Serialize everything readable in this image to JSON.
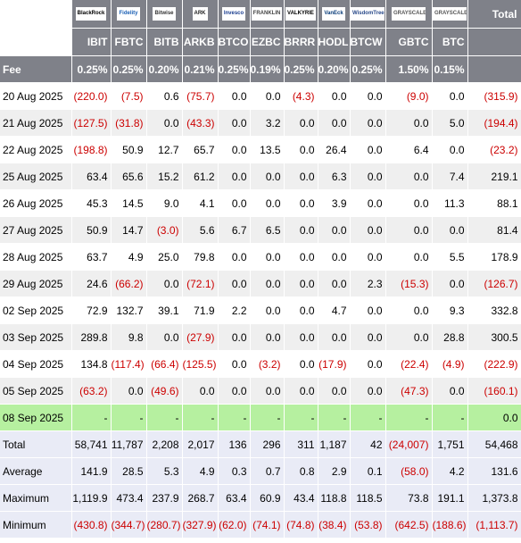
{
  "header": {
    "logos": [
      {
        "text": "BlackRock",
        "color": "#000000"
      },
      {
        "text": "Fidelity",
        "color": "#1a5fb4"
      },
      {
        "text": "Bitwise",
        "color": "#333333"
      },
      {
        "text": "ARK",
        "color": "#222222"
      },
      {
        "text": "Invesco",
        "color": "#1a3d8f"
      },
      {
        "text": "FRANKLIN",
        "color": "#444444"
      },
      {
        "text": "VALKYRIE",
        "color": "#000000"
      },
      {
        "text": "VanEck",
        "color": "#0a3d7a"
      },
      {
        "text": "WisdomTree",
        "color": "#2a4a8a"
      },
      {
        "text": "GRAYSCALE",
        "color": "#555555"
      },
      {
        "text": "GRAYSCALE",
        "color": "#555555"
      }
    ],
    "total_label": "Total",
    "tickers": [
      "IBIT",
      "FBTC",
      "BITB",
      "ARKB",
      "BTCO",
      "EZBC",
      "BRRR",
      "HODL",
      "BTCW",
      "GBTC",
      "BTC"
    ],
    "fee_label": "Fee",
    "fees": [
      "0.25%",
      "0.25%",
      "0.20%",
      "0.21%",
      "0.25%",
      "0.19%",
      "0.25%",
      "0.20%",
      "0.25%",
      "1.50%",
      "0.15%"
    ]
  },
  "rows": [
    {
      "date": "20 Aug 2025",
      "values": [
        "(220.0)",
        "(7.5)",
        "0.6",
        "(75.7)",
        "0.0",
        "0.0",
        "(4.3)",
        "0.0",
        "0.0",
        "(9.0)",
        "0.0"
      ],
      "total": "(315.9)"
    },
    {
      "date": "21 Aug 2025",
      "values": [
        "(127.5)",
        "(31.8)",
        "0.0",
        "(43.3)",
        "0.0",
        "3.2",
        "0.0",
        "0.0",
        "0.0",
        "0.0",
        "5.0"
      ],
      "total": "(194.4)"
    },
    {
      "date": "22 Aug 2025",
      "values": [
        "(198.8)",
        "50.9",
        "12.7",
        "65.7",
        "0.0",
        "13.5",
        "0.0",
        "26.4",
        "0.0",
        "6.4",
        "0.0"
      ],
      "total": "(23.2)"
    },
    {
      "date": "25 Aug 2025",
      "values": [
        "63.4",
        "65.6",
        "15.2",
        "61.2",
        "0.0",
        "0.0",
        "0.0",
        "6.3",
        "0.0",
        "0.0",
        "7.4"
      ],
      "total": "219.1"
    },
    {
      "date": "26 Aug 2025",
      "values": [
        "45.3",
        "14.5",
        "9.0",
        "4.1",
        "0.0",
        "0.0",
        "0.0",
        "3.9",
        "0.0",
        "0.0",
        "11.3"
      ],
      "total": "88.1"
    },
    {
      "date": "27 Aug 2025",
      "values": [
        "50.9",
        "14.7",
        "(3.0)",
        "5.6",
        "6.7",
        "6.5",
        "0.0",
        "0.0",
        "0.0",
        "0.0",
        "0.0"
      ],
      "total": "81.4"
    },
    {
      "date": "28 Aug 2025",
      "values": [
        "63.7",
        "4.9",
        "25.0",
        "79.8",
        "0.0",
        "0.0",
        "0.0",
        "0.0",
        "0.0",
        "0.0",
        "5.5"
      ],
      "total": "178.9"
    },
    {
      "date": "29 Aug 2025",
      "values": [
        "24.6",
        "(66.2)",
        "0.0",
        "(72.1)",
        "0.0",
        "0.0",
        "0.0",
        "0.0",
        "2.3",
        "(15.3)",
        "0.0"
      ],
      "total": "(126.7)"
    },
    {
      "date": "02 Sep 2025",
      "values": [
        "72.9",
        "132.7",
        "39.1",
        "71.9",
        "2.2",
        "0.0",
        "0.0",
        "4.7",
        "0.0",
        "0.0",
        "9.3"
      ],
      "total": "332.8"
    },
    {
      "date": "03 Sep 2025",
      "values": [
        "289.8",
        "9.8",
        "0.0",
        "(27.9)",
        "0.0",
        "0.0",
        "0.0",
        "0.0",
        "0.0",
        "0.0",
        "28.8"
      ],
      "total": "300.5"
    },
    {
      "date": "04 Sep 2025",
      "values": [
        "134.8",
        "(117.4)",
        "(66.4)",
        "(125.5)",
        "0.0",
        "(3.2)",
        "0.0",
        "(17.9)",
        "0.0",
        "(22.4)",
        "(4.9)"
      ],
      "total": "(222.9)"
    },
    {
      "date": "05 Sep 2025",
      "values": [
        "(63.2)",
        "0.0",
        "(49.6)",
        "0.0",
        "0.0",
        "0.0",
        "0.0",
        "0.0",
        "0.0",
        "(47.3)",
        "0.0"
      ],
      "total": "(160.1)"
    },
    {
      "date": "08 Sep 2025",
      "values": [
        "-",
        "-",
        "-",
        "-",
        "-",
        "-",
        "-",
        "-",
        "-",
        "-",
        "-"
      ],
      "total": "0.0",
      "highlight": true
    }
  ],
  "summary": [
    {
      "label": "Total",
      "values": [
        "58,741",
        "11,787",
        "2,208",
        "2,017",
        "136",
        "296",
        "311",
        "1,187",
        "42",
        "(24,007)",
        "1,751"
      ],
      "total": "54,468"
    },
    {
      "label": "Average",
      "values": [
        "141.9",
        "28.5",
        "5.3",
        "4.9",
        "0.3",
        "0.7",
        "0.8",
        "2.9",
        "0.1",
        "(58.0)",
        "4.2"
      ],
      "total": "131.6"
    },
    {
      "label": "Maximum",
      "values": [
        "1,119.9",
        "473.4",
        "237.9",
        "268.7",
        "63.4",
        "60.9",
        "43.4",
        "118.8",
        "118.5",
        "73.8",
        "191.1"
      ],
      "total": "1,373.8"
    },
    {
      "label": "Minimum",
      "values": [
        "(430.8)",
        "(344.7)",
        "(280.7)",
        "(327.9)",
        "(62.0)",
        "(74.1)",
        "(74.8)",
        "(38.4)",
        "(53.8)",
        "(642.5)",
        "(188.6)"
      ],
      "total": "(1,113.7)"
    }
  ],
  "colors": {
    "header_bg": "#7f8189",
    "negative": "#cc0000",
    "row_alt": "#efefef",
    "highlight_row": "#b6f0a0",
    "summary_bg": "#e9ebf6"
  }
}
